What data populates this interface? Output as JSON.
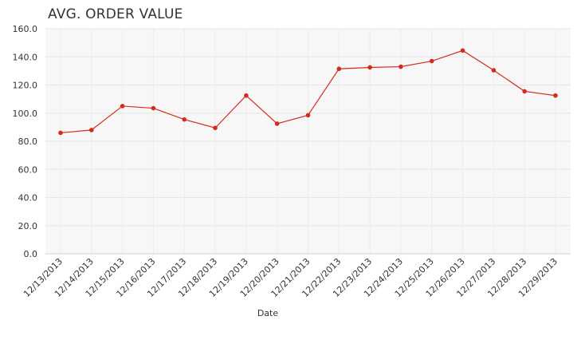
{
  "chart_data": {
    "type": "line",
    "title": "AVG. ORDER VALUE",
    "xlabel": "Date",
    "ylabel": "",
    "ylim": [
      0,
      160
    ],
    "yticks": [
      "0.0",
      "20.0",
      "40.0",
      "60.0",
      "80.0",
      "100.0",
      "120.0",
      "140.0",
      "160.0"
    ],
    "grid": true,
    "legend": "none",
    "color": "#d52b1e",
    "categories": [
      "12/13/2013",
      "12/14/2013",
      "12/15/2013",
      "12/16/2013",
      "12/17/2013",
      "12/18/2013",
      "12/19/2013",
      "12/20/2013",
      "12/21/2013",
      "12/22/2013",
      "12/23/2013",
      "12/24/2013",
      "12/25/2013",
      "12/26/2013",
      "12/27/2013",
      "12/28/2013",
      "12/29/2013"
    ],
    "series": [
      {
        "values": [
          86,
          88,
          105,
          103.5,
          95.5,
          89.5,
          112.5,
          92.5,
          98.5,
          131.5,
          132.5,
          133,
          137,
          144.5,
          130.5,
          115.5,
          112.5
        ]
      }
    ]
  }
}
